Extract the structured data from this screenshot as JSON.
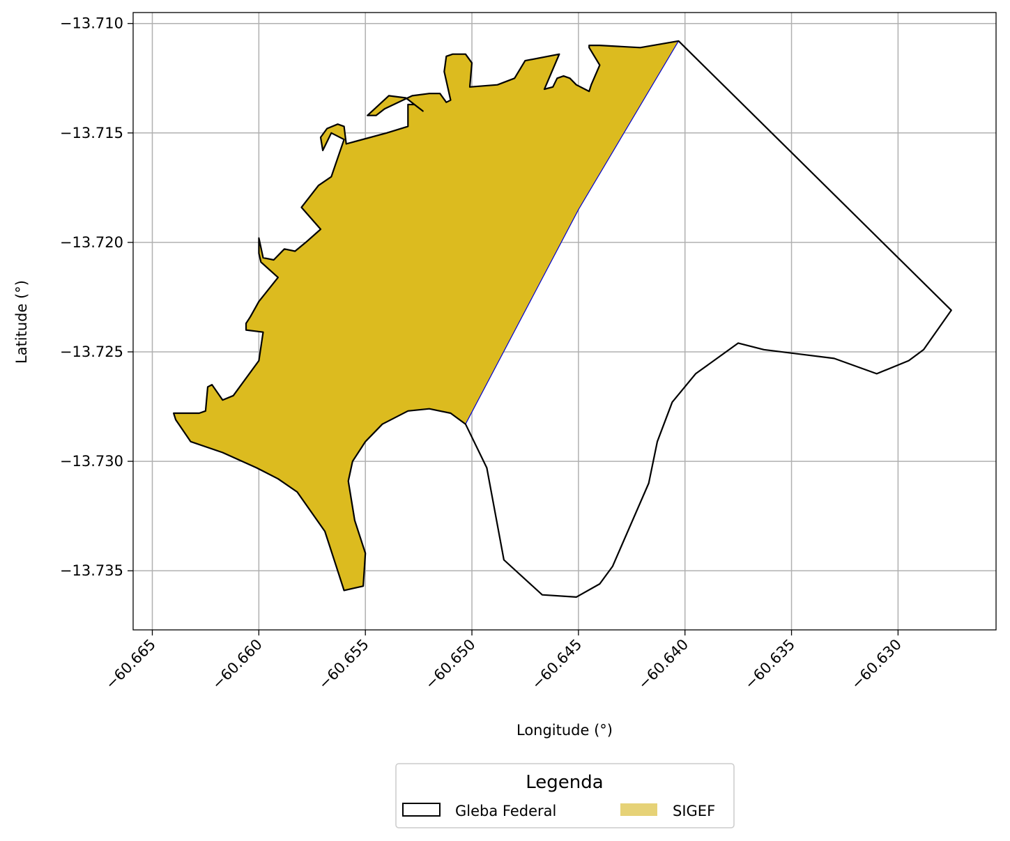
{
  "chart_data": {
    "type": "map",
    "xlabel": "Longitude (°)",
    "ylabel": "Latitude (°)",
    "xlim": [
      -60.6659,
      -60.6254
    ],
    "ylim": [
      -13.7377,
      -13.7095
    ],
    "xticks": [
      -60.665,
      -60.66,
      -60.655,
      -60.65,
      -60.645,
      -60.64,
      -60.635,
      -60.63
    ],
    "xtick_labels": [
      "−60.665",
      "−60.660",
      "−60.655",
      "−60.650",
      "−60.645",
      "−60.640",
      "−60.635",
      "−60.630"
    ],
    "yticks": [
      -13.71,
      -13.715,
      -13.72,
      -13.725,
      -13.73,
      -13.735
    ],
    "ytick_labels": [
      "−13.710",
      "−13.715",
      "−13.720",
      "−13.725",
      "−13.730",
      "−13.735"
    ],
    "grid": true,
    "legend": {
      "title": "Legenda",
      "placement": "bottom-center",
      "entries": [
        {
          "label": "Gleba Federal",
          "style": "outline",
          "edge": "#000000",
          "fill": "none"
        },
        {
          "label": "SIGEF",
          "style": "fill",
          "fill": "#e6d277"
        }
      ]
    },
    "layers": [
      {
        "name": "SIGEF",
        "fill": "#dcbb1f",
        "edge": "#0000cc",
        "coords": [
          [
            -60.664,
            -13.7278
          ],
          [
            -60.6628,
            -13.7278
          ],
          [
            -60.6625,
            -13.7277
          ],
          [
            -60.6624,
            -13.7266
          ],
          [
            -60.6622,
            -13.7265
          ],
          [
            -60.6617,
            -13.7272
          ],
          [
            -60.6612,
            -13.727
          ],
          [
            -60.66,
            -13.7254
          ],
          [
            -60.6598,
            -13.7241
          ],
          [
            -60.6606,
            -13.724
          ],
          [
            -60.6606,
            -13.7237
          ],
          [
            -60.6604,
            -13.7234
          ],
          [
            -60.66,
            -13.7227
          ],
          [
            -60.6591,
            -13.7216
          ],
          [
            -60.6599,
            -13.7209
          ],
          [
            -60.66,
            -13.7205
          ],
          [
            -60.66,
            -13.7198
          ],
          [
            -60.6598,
            -13.7207
          ],
          [
            -60.6593,
            -13.7208
          ],
          [
            -60.6588,
            -13.7203
          ],
          [
            -60.6583,
            -13.7204
          ],
          [
            -60.6578,
            -13.72
          ],
          [
            -60.6571,
            -13.7194
          ],
          [
            -60.658,
            -13.7184
          ],
          [
            -60.6572,
            -13.7174
          ],
          [
            -60.6566,
            -13.717
          ],
          [
            -60.656,
            -13.7153
          ],
          [
            -60.6566,
            -13.715
          ],
          [
            -60.657,
            -13.7158
          ],
          [
            -60.6571,
            -13.7152
          ],
          [
            -60.6568,
            -13.7148
          ],
          [
            -60.6563,
            -13.7146
          ],
          [
            -60.656,
            -13.7147
          ],
          [
            -60.6559,
            -13.7155
          ],
          [
            -60.654,
            -13.715
          ],
          [
            -60.653,
            -13.7147
          ],
          [
            -60.653,
            -13.7137
          ],
          [
            -60.6527,
            -13.7137
          ],
          [
            -60.6523,
            -13.714
          ],
          [
            -60.6531,
            -13.7134
          ],
          [
            -60.6539,
            -13.7133
          ],
          [
            -60.6549,
            -13.7142
          ],
          [
            -60.6545,
            -13.7142
          ],
          [
            -60.6541,
            -13.7139
          ],
          [
            -60.6528,
            -13.7133
          ],
          [
            -60.652,
            -13.7132
          ],
          [
            -60.6515,
            -13.7132
          ],
          [
            -60.6512,
            -13.7136
          ],
          [
            -60.651,
            -13.7135
          ],
          [
            -60.6513,
            -13.7122
          ],
          [
            -60.6512,
            -13.7115
          ],
          [
            -60.6509,
            -13.7114
          ],
          [
            -60.6503,
            -13.7114
          ],
          [
            -60.65,
            -13.7118
          ],
          [
            -60.6501,
            -13.7129
          ],
          [
            -60.6488,
            -13.7128
          ],
          [
            -60.648,
            -13.7125
          ],
          [
            -60.6475,
            -13.7117
          ],
          [
            -60.6459,
            -13.7114
          ],
          [
            -60.6466,
            -13.713
          ],
          [
            -60.6462,
            -13.7129
          ],
          [
            -60.646,
            -13.7125
          ],
          [
            -60.6457,
            -13.7124
          ],
          [
            -60.6454,
            -13.7125
          ],
          [
            -60.6451,
            -13.7128
          ],
          [
            -60.6445,
            -13.7131
          ],
          [
            -60.6444,
            -13.7128
          ],
          [
            -60.644,
            -13.7119
          ],
          [
            -60.6445,
            -13.7111
          ],
          [
            -60.6445,
            -13.711
          ],
          [
            -60.644,
            -13.711
          ],
          [
            -60.6421,
            -13.7111
          ],
          [
            -60.6403,
            -13.7108
          ],
          [
            -60.645,
            -13.7185
          ],
          [
            -60.6503,
            -13.7283
          ],
          [
            -60.651,
            -13.7278
          ],
          [
            -60.652,
            -13.7276
          ],
          [
            -60.653,
            -13.7277
          ],
          [
            -60.6542,
            -13.7283
          ],
          [
            -60.655,
            -13.7291
          ],
          [
            -60.6556,
            -13.73
          ],
          [
            -60.6558,
            -13.7309
          ],
          [
            -60.6555,
            -13.7327
          ],
          [
            -60.655,
            -13.7342
          ],
          [
            -60.6551,
            -13.7357
          ],
          [
            -60.656,
            -13.7359
          ],
          [
            -60.6564,
            -13.7347
          ],
          [
            -60.6569,
            -13.7332
          ],
          [
            -60.6582,
            -13.7314
          ],
          [
            -60.6591,
            -13.7308
          ],
          [
            -60.6601,
            -13.7303
          ],
          [
            -60.6617,
            -13.7296
          ],
          [
            -60.6632,
            -13.7291
          ],
          [
            -60.6639,
            -13.7281
          ],
          [
            -60.664,
            -13.7278
          ]
        ]
      },
      {
        "name": "Gleba Federal",
        "fill": "none",
        "edge": "#000000",
        "coords": [
          [
            -60.6403,
            -13.7108
          ],
          [
            -60.6275,
            -13.7231
          ],
          [
            -60.6288,
            -13.7249
          ],
          [
            -60.6295,
            -13.7254
          ],
          [
            -60.631,
            -13.726
          ],
          [
            -60.633,
            -13.7253
          ],
          [
            -60.6363,
            -13.7249
          ],
          [
            -60.6375,
            -13.7246
          ],
          [
            -60.6395,
            -13.726
          ],
          [
            -60.6406,
            -13.7273
          ],
          [
            -60.6413,
            -13.7291
          ],
          [
            -60.6417,
            -13.731
          ],
          [
            -60.6434,
            -13.7348
          ],
          [
            -60.644,
            -13.7356
          ],
          [
            -60.6451,
            -13.7362
          ],
          [
            -60.6467,
            -13.7361
          ],
          [
            -60.6485,
            -13.7345
          ],
          [
            -60.6493,
            -13.7303
          ],
          [
            -60.6503,
            -13.7283
          ],
          [
            -60.651,
            -13.7278
          ],
          [
            -60.652,
            -13.7276
          ],
          [
            -60.653,
            -13.7277
          ],
          [
            -60.6542,
            -13.7283
          ],
          [
            -60.655,
            -13.7291
          ],
          [
            -60.6556,
            -13.73
          ],
          [
            -60.6558,
            -13.7309
          ],
          [
            -60.6555,
            -13.7327
          ],
          [
            -60.655,
            -13.7342
          ],
          [
            -60.6551,
            -13.7357
          ],
          [
            -60.656,
            -13.7359
          ],
          [
            -60.6564,
            -13.7347
          ],
          [
            -60.6569,
            -13.7332
          ],
          [
            -60.6582,
            -13.7314
          ],
          [
            -60.6591,
            -13.7308
          ],
          [
            -60.6601,
            -13.7303
          ],
          [
            -60.6617,
            -13.7296
          ],
          [
            -60.6632,
            -13.7291
          ],
          [
            -60.6639,
            -13.7281
          ],
          [
            -60.664,
            -13.7278
          ],
          [
            -60.6628,
            -13.7278
          ],
          [
            -60.6625,
            -13.7277
          ],
          [
            -60.6624,
            -13.7266
          ],
          [
            -60.6622,
            -13.7265
          ],
          [
            -60.6617,
            -13.7272
          ],
          [
            -60.6612,
            -13.727
          ],
          [
            -60.66,
            -13.7254
          ],
          [
            -60.6598,
            -13.7241
          ],
          [
            -60.6606,
            -13.724
          ],
          [
            -60.6606,
            -13.7237
          ],
          [
            -60.6604,
            -13.7234
          ],
          [
            -60.66,
            -13.7227
          ],
          [
            -60.6591,
            -13.7216
          ],
          [
            -60.6599,
            -13.7209
          ],
          [
            -60.66,
            -13.7205
          ],
          [
            -60.66,
            -13.7198
          ],
          [
            -60.6598,
            -13.7207
          ],
          [
            -60.6593,
            -13.7208
          ],
          [
            -60.6588,
            -13.7203
          ],
          [
            -60.6583,
            -13.7204
          ],
          [
            -60.6578,
            -13.72
          ],
          [
            -60.6571,
            -13.7194
          ],
          [
            -60.658,
            -13.7184
          ],
          [
            -60.6572,
            -13.7174
          ],
          [
            -60.6566,
            -13.717
          ],
          [
            -60.656,
            -13.7153
          ],
          [
            -60.6566,
            -13.715
          ],
          [
            -60.657,
            -13.7158
          ],
          [
            -60.6571,
            -13.7152
          ],
          [
            -60.6568,
            -13.7148
          ],
          [
            -60.6563,
            -13.7146
          ],
          [
            -60.656,
            -13.7147
          ],
          [
            -60.6559,
            -13.7155
          ],
          [
            -60.654,
            -13.715
          ],
          [
            -60.653,
            -13.7147
          ],
          [
            -60.653,
            -13.7137
          ],
          [
            -60.6527,
            -13.7137
          ],
          [
            -60.6523,
            -13.714
          ],
          [
            -60.6531,
            -13.7134
          ],
          [
            -60.6539,
            -13.7133
          ],
          [
            -60.6549,
            -13.7142
          ],
          [
            -60.6545,
            -13.7142
          ],
          [
            -60.6541,
            -13.7139
          ],
          [
            -60.6528,
            -13.7133
          ],
          [
            -60.652,
            -13.7132
          ],
          [
            -60.6515,
            -13.7132
          ],
          [
            -60.6512,
            -13.7136
          ],
          [
            -60.651,
            -13.7135
          ],
          [
            -60.6513,
            -13.7122
          ],
          [
            -60.6512,
            -13.7115
          ],
          [
            -60.6509,
            -13.7114
          ],
          [
            -60.6503,
            -13.7114
          ],
          [
            -60.65,
            -13.7118
          ],
          [
            -60.6501,
            -13.7129
          ],
          [
            -60.6488,
            -13.7128
          ],
          [
            -60.648,
            -13.7125
          ],
          [
            -60.6475,
            -13.7117
          ],
          [
            -60.6459,
            -13.7114
          ],
          [
            -60.6466,
            -13.713
          ],
          [
            -60.6462,
            -13.7129
          ],
          [
            -60.646,
            -13.7125
          ],
          [
            -60.6457,
            -13.7124
          ],
          [
            -60.6454,
            -13.7125
          ],
          [
            -60.6451,
            -13.7128
          ],
          [
            -60.6445,
            -13.7131
          ],
          [
            -60.6444,
            -13.7128
          ],
          [
            -60.644,
            -13.7119
          ],
          [
            -60.6445,
            -13.7111
          ],
          [
            -60.6445,
            -13.711
          ],
          [
            -60.644,
            -13.711
          ],
          [
            -60.6421,
            -13.7111
          ],
          [
            -60.6403,
            -13.7108
          ]
        ]
      }
    ]
  }
}
